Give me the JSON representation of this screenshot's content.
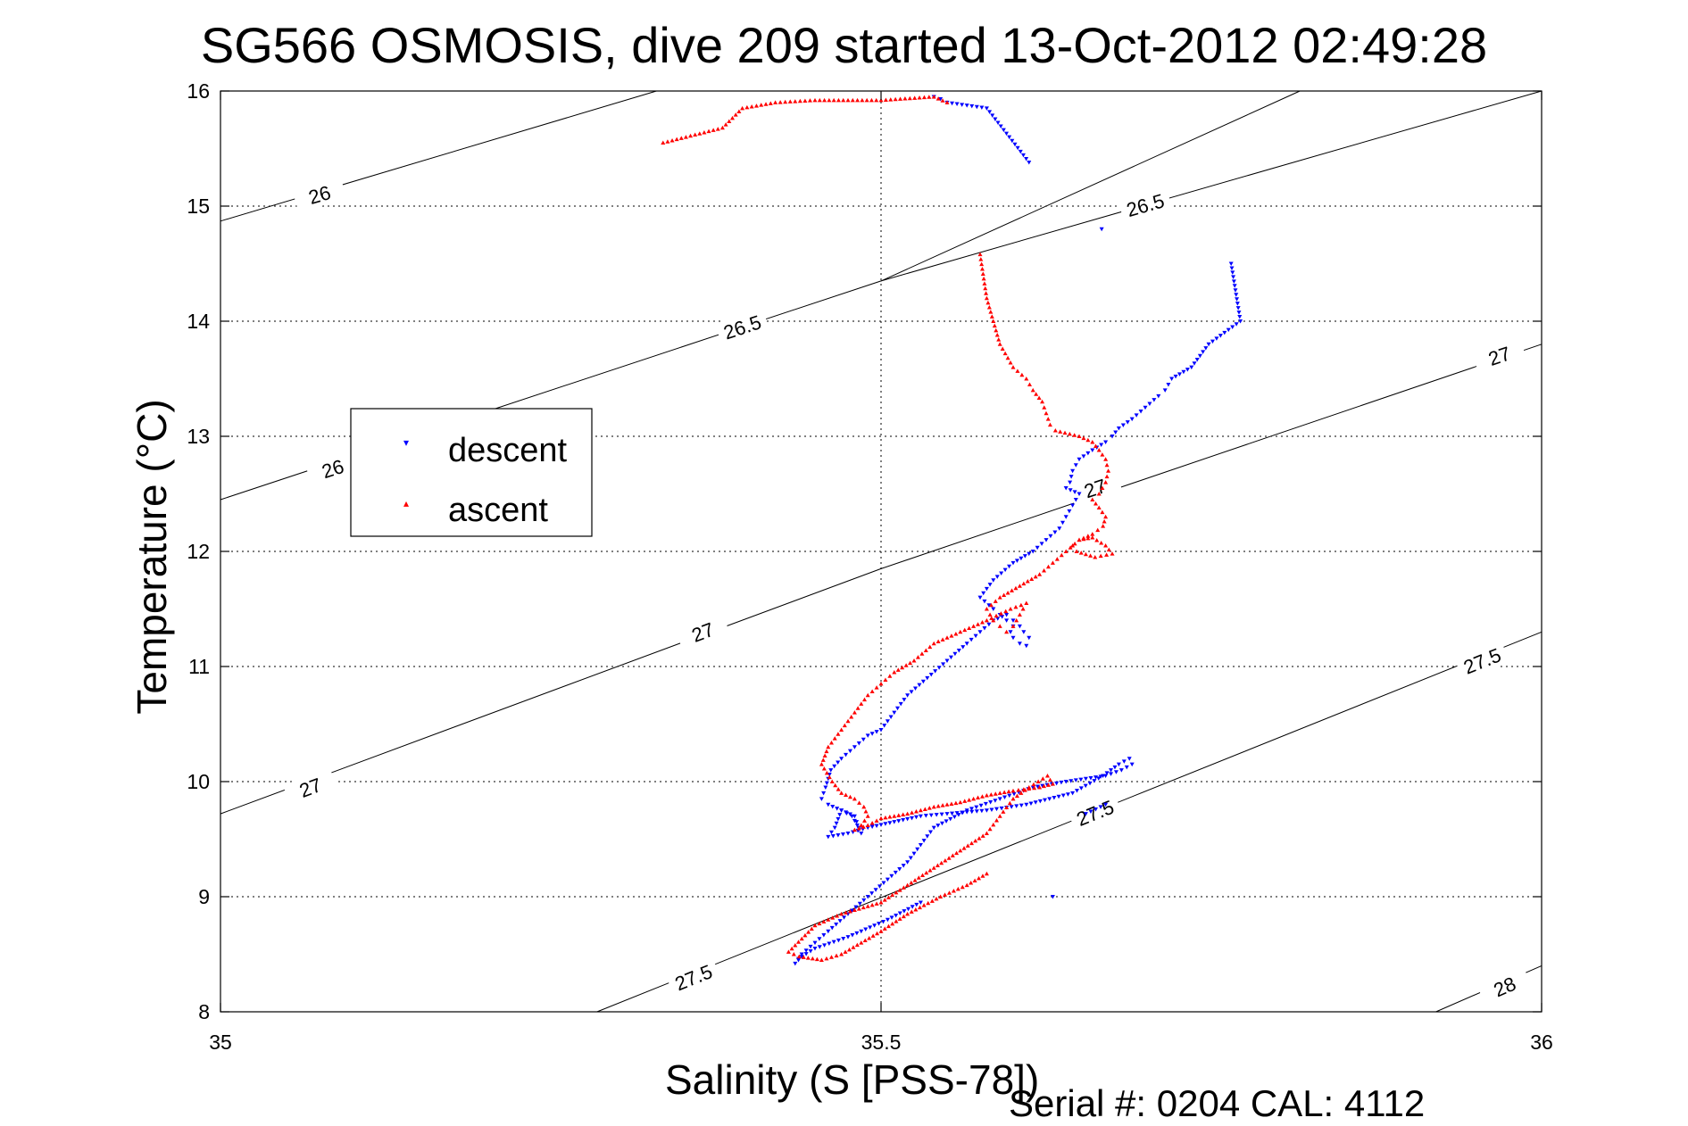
{
  "chart_data": {
    "type": "scatter",
    "title": "SG566 OSMOSIS, dive 209 started 13-Oct-2012 02:49:28",
    "xlabel": "Salinity (S [PSS-78])",
    "ylabel": "Temperature (°C)",
    "footer": "Serial #: 0204  CAL: 4112",
    "xlim": [
      35,
      36
    ],
    "ylim": [
      8,
      16
    ],
    "x_ticks": [
      35,
      35.5,
      36
    ],
    "y_ticks": [
      8,
      9,
      10,
      11,
      12,
      13,
      14,
      15,
      16
    ],
    "x_tick_labels": [
      "35",
      "35.5",
      "36"
    ],
    "y_tick_labels": [
      "8",
      "9",
      "10",
      "11",
      "12",
      "13",
      "14",
      "15",
      "16"
    ],
    "grid": true,
    "legend": {
      "position": "upper-left",
      "entries": [
        "descent",
        "ascent"
      ]
    },
    "colors": {
      "descent": "#0000ff",
      "ascent": "#ff0000",
      "contour": "#000000",
      "grid": "#000000"
    },
    "isopycnals": [
      {
        "label": "26",
        "points": [
          [
            35,
            14.87
          ],
          [
            35.33,
            16.0
          ]
        ],
        "label_positions": [
          [
            35.075,
            15.1
          ]
        ]
      },
      {
        "label": "26",
        "points": [
          [
            35,
            12.45
          ],
          [
            35.5,
            14.35
          ],
          [
            35.817,
            16.0
          ]
        ],
        "label_positions": [
          [
            35.085,
            12.72
          ]
        ]
      },
      {
        "label": "26.5",
        "points": [
          [
            35,
            12.45
          ],
          [
            35.5,
            14.35
          ],
          [
            35.817,
            16.0
          ]
        ],
        "label_positions": [
          [
            35.395,
            13.95
          ]
        ]
      },
      {
        "label": "26.5",
        "points": [
          [
            35.5,
            14.35
          ],
          [
            36,
            16.0
          ]
        ],
        "label_positions": [
          [
            35.7,
            15.01
          ]
        ]
      },
      {
        "label": "27",
        "points": [
          [
            35,
            9.72
          ],
          [
            35.5,
            11.85
          ],
          [
            36,
            13.8
          ]
        ],
        "label_positions": [
          [
            35.068,
            9.95
          ],
          [
            35.365,
            11.3
          ],
          [
            35.662,
            12.55
          ],
          [
            35.968,
            13.7
          ]
        ]
      },
      {
        "label": "27.5",
        "points": [
          [
            35.285,
            8.0
          ],
          [
            36,
            11.3
          ]
        ],
        "label_positions": [
          [
            35.358,
            8.3
          ],
          [
            35.662,
            9.73
          ],
          [
            35.955,
            11.05
          ]
        ]
      },
      {
        "label": "28",
        "points": [
          [
            35.92,
            8.0
          ],
          [
            36,
            8.4
          ]
        ],
        "label_positions": [
          [
            35.972,
            8.22
          ]
        ]
      }
    ],
    "series": [
      {
        "name": "descent",
        "marker": "triangle-down",
        "x": [
          35.54,
          35.545,
          35.55,
          35.58,
          35.612,
          35.667,
          35.765,
          35.772,
          35.748,
          35.735,
          35.72,
          35.715,
          35.71,
          35.7,
          35.69,
          35.68,
          35.675,
          35.67,
          35.66,
          35.65,
          35.645,
          35.643,
          35.64,
          35.65,
          35.645,
          35.64,
          35.635,
          35.625,
          35.615,
          35.6,
          35.585,
          35.575,
          35.585,
          35.59,
          35.595,
          35.6,
          35.598,
          35.6,
          35.605,
          35.61,
          35.612,
          35.608,
          35.605,
          35.6,
          35.595,
          35.585,
          35.575,
          35.565,
          35.55,
          35.535,
          35.52,
          35.51,
          35.5,
          35.49,
          35.48,
          35.47,
          35.462,
          35.458,
          35.455,
          35.46,
          35.47,
          35.48,
          35.483,
          35.485,
          35.482,
          35.478,
          35.47,
          35.465,
          35.46,
          35.475,
          35.49,
          35.51,
          35.53,
          35.55,
          35.58,
          35.61,
          35.645,
          35.668,
          35.68,
          35.688,
          35.69,
          35.682,
          35.67,
          35.64,
          35.615,
          35.59,
          35.565,
          35.54,
          35.53,
          35.52,
          35.505,
          35.49,
          35.475,
          35.46,
          35.45,
          35.44,
          35.435,
          35.44,
          35.45,
          35.475,
          35.505,
          35.53,
          35.63,
          35.655,
          35.67
        ],
        "y": [
          15.95,
          15.93,
          15.9,
          15.85,
          15.38,
          14.8,
          14.5,
          14.0,
          13.8,
          13.6,
          13.5,
          13.4,
          13.35,
          13.25,
          13.15,
          13.07,
          13.0,
          12.95,
          12.88,
          12.8,
          12.7,
          12.6,
          12.55,
          12.5,
          12.4,
          12.3,
          12.2,
          12.1,
          12.0,
          11.9,
          11.75,
          11.6,
          11.5,
          11.45,
          11.4,
          11.35,
          11.3,
          11.25,
          11.2,
          11.18,
          11.25,
          11.3,
          11.35,
          11.4,
          11.45,
          11.4,
          11.3,
          11.2,
          11.05,
          10.9,
          10.75,
          10.6,
          10.45,
          10.4,
          10.3,
          10.2,
          10.1,
          9.95,
          9.85,
          9.8,
          9.75,
          9.7,
          9.6,
          9.55,
          9.62,
          9.7,
          9.75,
          9.6,
          9.52,
          9.55,
          9.6,
          9.65,
          9.7,
          9.72,
          9.75,
          9.8,
          9.9,
          10.05,
          10.15,
          10.2,
          10.15,
          10.1,
          10.05,
          10.0,
          9.95,
          9.85,
          9.75,
          9.6,
          9.45,
          9.3,
          9.15,
          9.0,
          8.85,
          8.7,
          8.6,
          8.5,
          8.42,
          8.48,
          8.55,
          8.65,
          8.8,
          8.95,
          9.0,
          9.72,
          9.8
        ]
      },
      {
        "name": "ascent",
        "marker": "triangle-up",
        "x": [
          35.335,
          35.38,
          35.395,
          35.42,
          35.45,
          35.5,
          35.54,
          35.55,
          35.575,
          35.58,
          35.585,
          35.59,
          35.6,
          35.61,
          35.615,
          35.622,
          35.625,
          35.628,
          35.632,
          35.65,
          35.66,
          35.665,
          35.67,
          35.672,
          35.67,
          35.665,
          35.66,
          35.665,
          35.67,
          35.668,
          35.66,
          35.65,
          35.645,
          35.648,
          35.662,
          35.675,
          35.67,
          35.66,
          35.65,
          35.64,
          35.63,
          35.62,
          35.605,
          35.59,
          35.58,
          35.585,
          35.59,
          35.595,
          35.6,
          35.605,
          35.61,
          35.598,
          35.58,
          35.56,
          35.54,
          35.525,
          35.51,
          35.5,
          35.49,
          35.48,
          35.47,
          35.46,
          35.455,
          35.463,
          35.47,
          35.48,
          35.487,
          35.49,
          35.485,
          35.48,
          35.49,
          35.5,
          35.52,
          35.54,
          35.56,
          35.58,
          35.6,
          35.62,
          35.63,
          35.626,
          35.612,
          35.6,
          35.59,
          35.58,
          35.56,
          35.54,
          35.52,
          35.5,
          35.47,
          35.45,
          35.43,
          35.438,
          35.455,
          35.47,
          35.485,
          35.5,
          35.52,
          35.545,
          35.565,
          35.58
        ],
        "y": [
          15.55,
          15.68,
          15.85,
          15.9,
          15.92,
          15.92,
          15.95,
          15.9,
          14.58,
          14.2,
          14.0,
          13.8,
          13.6,
          13.5,
          13.4,
          13.3,
          13.2,
          13.1,
          13.05,
          13.0,
          12.95,
          12.88,
          12.8,
          12.7,
          12.6,
          12.5,
          12.45,
          12.38,
          12.3,
          12.22,
          12.15,
          12.1,
          12.05,
          12.0,
          11.95,
          11.98,
          12.05,
          12.12,
          12.1,
          12.0,
          11.9,
          11.8,
          11.7,
          11.6,
          11.5,
          11.4,
          11.35,
          11.3,
          11.35,
          11.45,
          11.55,
          11.5,
          11.4,
          11.3,
          11.2,
          11.05,
          10.95,
          10.85,
          10.75,
          10.6,
          10.45,
          10.3,
          10.15,
          10.0,
          9.9,
          9.85,
          9.78,
          9.7,
          9.62,
          9.58,
          9.62,
          9.68,
          9.72,
          9.78,
          9.82,
          9.88,
          9.92,
          9.95,
          9.98,
          10.05,
          9.95,
          9.85,
          9.7,
          9.55,
          9.4,
          9.25,
          9.1,
          8.95,
          8.85,
          8.75,
          8.52,
          8.48,
          8.45,
          8.5,
          8.6,
          8.7,
          8.85,
          9.0,
          9.1,
          9.2
        ]
      }
    ]
  },
  "axes": {
    "x_tick_labels": [
      "35",
      "35.5",
      "36"
    ],
    "y_tick_labels": [
      "8",
      "9",
      "10",
      "11",
      "12",
      "13",
      "14",
      "15",
      "16"
    ]
  },
  "legend": {
    "descent_label": "descent",
    "ascent_label": "ascent"
  }
}
